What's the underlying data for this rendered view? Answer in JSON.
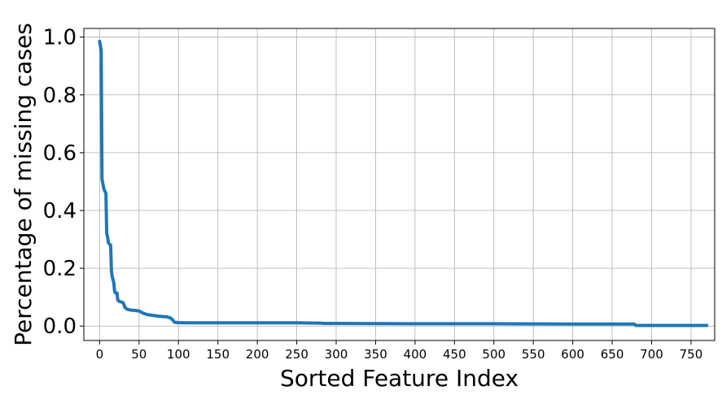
{
  "chart_data": {
    "type": "line",
    "xlabel": "Sorted Feature Index",
    "ylabel": "Percentage of missing cases",
    "xlim": [
      -20,
      780
    ],
    "ylim": [
      -0.05,
      1.03
    ],
    "xticks": [
      0,
      50,
      100,
      150,
      200,
      250,
      300,
      350,
      400,
      450,
      500,
      550,
      600,
      650,
      700,
      750
    ],
    "xtick_labels": [
      "0",
      "50",
      "100",
      "150",
      "200",
      "250",
      "300",
      "350",
      "400",
      "450",
      "500",
      "550",
      "600",
      "650",
      "700",
      "750"
    ],
    "yticks": [
      0.0,
      0.2,
      0.4,
      0.6,
      0.8,
      1.0
    ],
    "ytick_labels": [
      "0.0",
      "0.2",
      "0.4",
      "0.6",
      "0.8",
      "1.0"
    ],
    "grid": true,
    "color": "#1f77b4",
    "series": [
      {
        "x": [
          0,
          1,
          2,
          3,
          3,
          5,
          6,
          8,
          9,
          10,
          11,
          12,
          14,
          15,
          16,
          17,
          18,
          19,
          20,
          22,
          23,
          24,
          25,
          28,
          30,
          32,
          35,
          38,
          40,
          45,
          50,
          55,
          60,
          65,
          70,
          75,
          80,
          85,
          90,
          93,
          95,
          100,
          110,
          150,
          200,
          250,
          280,
          285,
          300,
          400,
          500,
          600,
          678,
          680,
          700,
          750,
          770
        ],
        "y": [
          0.985,
          0.97,
          0.95,
          0.52,
          0.51,
          0.48,
          0.47,
          0.46,
          0.32,
          0.31,
          0.29,
          0.285,
          0.28,
          0.19,
          0.17,
          0.16,
          0.15,
          0.12,
          0.115,
          0.115,
          0.09,
          0.088,
          0.085,
          0.083,
          0.08,
          0.065,
          0.058,
          0.056,
          0.055,
          0.054,
          0.052,
          0.045,
          0.04,
          0.038,
          0.036,
          0.034,
          0.033,
          0.032,
          0.028,
          0.02,
          0.013,
          0.012,
          0.011,
          0.011,
          0.011,
          0.011,
          0.01,
          0.009,
          0.009,
          0.008,
          0.008,
          0.007,
          0.007,
          0.002,
          0.002,
          0.002,
          0.002
        ]
      }
    ]
  }
}
